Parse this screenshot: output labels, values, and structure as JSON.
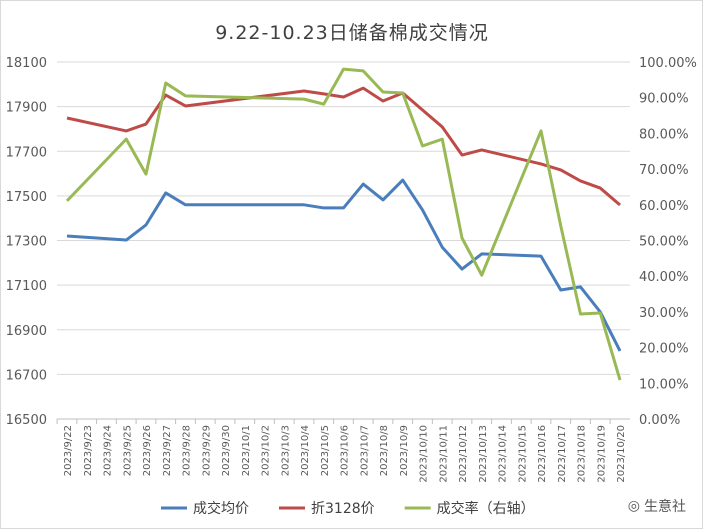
{
  "chart_data": {
    "type": "line",
    "title": "9.22-10.23日储备棉成交情况",
    "categories": [
      "2023/9/22",
      "2023/9/23",
      "2023/9/24",
      "2023/9/25",
      "2023/9/26",
      "2023/9/27",
      "2023/9/28",
      "2023/9/29",
      "2023/9/30",
      "2023/10/1",
      "2023/10/2",
      "2023/10/3",
      "2023/10/4",
      "2023/10/5",
      "2023/10/6",
      "2023/10/7",
      "2023/10/8",
      "2023/10/9",
      "2023/10/10",
      "2023/10/11",
      "2023/10/12",
      "2023/10/13",
      "2023/10/14",
      "2023/10/15",
      "2023/10/16",
      "2023/10/17",
      "2023/10/18",
      "2023/10/19",
      "2023/10/20"
    ],
    "left_axis": {
      "ylim": [
        16500,
        18100
      ],
      "ticks": [
        "16500",
        "16700",
        "16900",
        "17100",
        "17300",
        "17500",
        "17700",
        "17900",
        "18100"
      ]
    },
    "right_axis": {
      "ylim": [
        0,
        100
      ],
      "ticks": [
        "0.00%",
        "10.00%",
        "20.00%",
        "30.00%",
        "40.00%",
        "50.00%",
        "60.00%",
        "70.00%",
        "80.00%",
        "90.00%",
        "100.00%"
      ]
    },
    "series": [
      {
        "name": "成交均价",
        "axis": "left",
        "color": "#4a7ebb",
        "points": {
          "2023/9/22": 17320,
          "2023/9/25": 17302,
          "2023/9/26": 17370,
          "2023/9/27": 17513,
          "2023/9/28": 17460,
          "2023/10/4": 17460,
          "2023/10/5": 17446,
          "2023/10/6": 17446,
          "2023/10/7": 17553,
          "2023/10/8": 17482,
          "2023/10/9": 17571,
          "2023/10/10": 17437,
          "2023/10/11": 17270,
          "2023/10/12": 17172,
          "2023/10/13": 17240,
          "2023/10/16": 17230,
          "2023/10/17": 17078,
          "2023/10/18": 17092,
          "2023/10/19": 16980,
          "2023/10/20": 16805
        }
      },
      {
        "name": "折3128价",
        "axis": "left",
        "color": "#be4b48",
        "points": {
          "2023/9/22": 17849,
          "2023/9/25": 17791,
          "2023/9/26": 17822,
          "2023/9/27": 17952,
          "2023/9/28": 17903,
          "2023/10/4": 17970,
          "2023/10/5": 17957,
          "2023/10/6": 17943,
          "2023/10/7": 17983,
          "2023/10/8": 17925,
          "2023/10/9": 17961,
          "2023/10/10": 17885,
          "2023/10/11": 17809,
          "2023/10/12": 17683,
          "2023/10/13": 17706,
          "2023/10/16": 17643,
          "2023/10/17": 17616,
          "2023/10/18": 17567,
          "2023/10/19": 17535,
          "2023/10/20": 17459
        }
      },
      {
        "name": "成交率（右轴）",
        "axis": "right",
        "color": "#98b954",
        "points": {
          "2023/9/22": 61.1,
          "2023/9/25": 78.4,
          "2023/9/26": 68.6,
          "2023/9/27": 94.1,
          "2023/9/28": 90.5,
          "2023/10/4": 89.6,
          "2023/10/5": 88.2,
          "2023/10/6": 98.0,
          "2023/10/7": 97.5,
          "2023/10/8": 91.6,
          "2023/10/9": 91.3,
          "2023/10/10": 76.5,
          "2023/10/11": 78.4,
          "2023/10/12": 50.7,
          "2023/10/13": 40.3,
          "2023/10/16": 80.7,
          "2023/10/17": 54.1,
          "2023/10/18": 29.4,
          "2023/10/19": 29.7,
          "2023/10/20": 10.9
        }
      }
    ],
    "legend": "bottom",
    "grid": true
  },
  "watermark": "生意社"
}
